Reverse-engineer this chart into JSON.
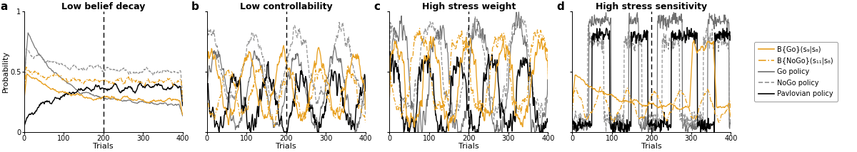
{
  "panels": [
    {
      "label": "a",
      "title": "Low belief decay"
    },
    {
      "label": "b",
      "title": "Low controllability"
    },
    {
      "label": "c",
      "title": "High stress weight"
    },
    {
      "label": "d",
      "title": "High stress sensitivity"
    }
  ],
  "n_trials": 401,
  "vline_x": 200,
  "colors": {
    "go_belief": "#E8A020",
    "nogo_belief": "#E8A020",
    "go_policy": "#707070",
    "nogo_policy": "#909090",
    "pavlovian": "#000000"
  },
  "legend_entries": [
    {
      "label": "B{Go}(s₉|s₈)",
      "color": "#E8A020",
      "linestyle": "solid"
    },
    {
      "label": "B{NoGo}(s₁₁|s₈)",
      "color": "#E8A020",
      "linestyle": "dashdot"
    },
    {
      "label": "Go policy",
      "color": "#707070",
      "linestyle": "solid"
    },
    {
      "label": "NoGo policy",
      "color": "#909090",
      "linestyle": "dashed"
    },
    {
      "label": "Pavlovian policy",
      "color": "#000000",
      "linestyle": "solid"
    }
  ],
  "xlabel": "Trials",
  "ylabel": "Probability",
  "ylim": [
    0,
    1
  ],
  "yticks": [
    0,
    0.5,
    1
  ],
  "xticks": [
    0,
    100,
    200,
    300,
    400
  ],
  "width_ratios": [
    1,
    1,
    1,
    1,
    0.52
  ],
  "figsize": [
    12.0,
    2.14
  ],
  "dpi": 100
}
